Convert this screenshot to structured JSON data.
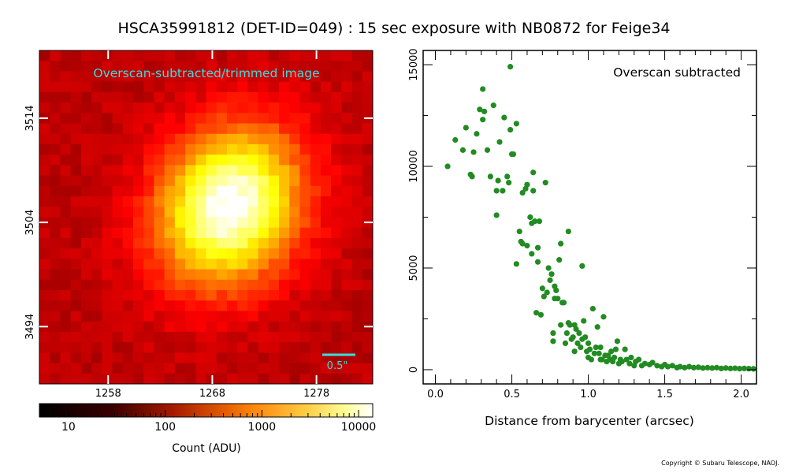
{
  "figure": {
    "title": "HSCA35991812 (DET-ID=049) :  15 sec exposure with NB0872 for Feige34",
    "copyright": "Copyright © Subaru Telescope, NAOJ."
  },
  "chart_data": [
    {
      "type": "heatmap",
      "label": "Overscan-subtracted/trimmed image",
      "x_ticks": [
        1258,
        1268,
        1278
      ],
      "y_ticks": [
        3494,
        3504,
        3514
      ],
      "xlim": [
        1251.4,
        1283.4
      ],
      "ylim": [
        3488.5,
        3520.5
      ],
      "peak_center": [
        1269.6,
        3505.5
      ],
      "scale_bar_label": "0.5\"",
      "label_color": "#33e0e0",
      "colorbar": {
        "label": "Count (ADU)",
        "scale": "log",
        "range": [
          5,
          14000
        ],
        "tick_labels": [
          "10",
          "100",
          "1000",
          "10000"
        ],
        "tick_values": [
          10,
          100,
          1000,
          10000
        ]
      }
    },
    {
      "type": "scatter",
      "label": "Overscan subtracted",
      "xlabel": "Distance from barycenter (arcsec)",
      "ylabel": "",
      "xlim": [
        -0.08,
        2.1
      ],
      "ylim": [
        -700,
        15700
      ],
      "x_ticks": [
        0.0,
        0.5,
        1.0,
        1.5,
        2.0
      ],
      "x_tick_labels": [
        "0.0",
        "0.5",
        "1.0",
        "1.5",
        "2.0"
      ],
      "y_ticks": [
        0,
        5000,
        10000,
        15000
      ],
      "y_tick_labels": [
        "0",
        "5000",
        "10000",
        "15000"
      ],
      "color": "#228b22",
      "points": [
        [
          0.08,
          10000
        ],
        [
          0.13,
          11300
        ],
        [
          0.18,
          10800
        ],
        [
          0.2,
          11900
        ],
        [
          0.23,
          9600
        ],
        [
          0.24,
          9500
        ],
        [
          0.25,
          10700
        ],
        [
          0.27,
          11600
        ],
        [
          0.29,
          12800
        ],
        [
          0.31,
          13800
        ],
        [
          0.31,
          12300
        ],
        [
          0.32,
          12700
        ],
        [
          0.34,
          10800
        ],
        [
          0.36,
          9500
        ],
        [
          0.38,
          13000
        ],
        [
          0.4,
          8800
        ],
        [
          0.4,
          7600
        ],
        [
          0.41,
          9300
        ],
        [
          0.42,
          11200
        ],
        [
          0.44,
          8800
        ],
        [
          0.45,
          12400
        ],
        [
          0.47,
          9500
        ],
        [
          0.48,
          9200
        ],
        [
          0.49,
          14900
        ],
        [
          0.49,
          11800
        ],
        [
          0.5,
          10600
        ],
        [
          0.51,
          10600
        ],
        [
          0.53,
          12100
        ],
        [
          0.53,
          5200
        ],
        [
          0.55,
          6800
        ],
        [
          0.56,
          6300
        ],
        [
          0.57,
          6200
        ],
        [
          0.57,
          8700
        ],
        [
          0.59,
          8900
        ],
        [
          0.6,
          9100
        ],
        [
          0.6,
          6100
        ],
        [
          0.62,
          7500
        ],
        [
          0.63,
          5700
        ],
        [
          0.63,
          7200
        ],
        [
          0.64,
          8800
        ],
        [
          0.64,
          9700
        ],
        [
          0.65,
          7300
        ],
        [
          0.66,
          2800
        ],
        [
          0.67,
          6000
        ],
        [
          0.67,
          5300
        ],
        [
          0.68,
          7300
        ],
        [
          0.69,
          2700
        ],
        [
          0.7,
          4000
        ],
        [
          0.71,
          3600
        ],
        [
          0.72,
          9200
        ],
        [
          0.73,
          3800
        ],
        [
          0.74,
          5000
        ],
        [
          0.75,
          4400
        ],
        [
          0.76,
          4700
        ],
        [
          0.77,
          1800
        ],
        [
          0.77,
          1400
        ],
        [
          0.78,
          4100
        ],
        [
          0.78,
          3500
        ],
        [
          0.79,
          3900
        ],
        [
          0.8,
          3500
        ],
        [
          0.81,
          5400
        ],
        [
          0.82,
          6200
        ],
        [
          0.82,
          2200
        ],
        [
          0.83,
          3300
        ],
        [
          0.84,
          3300
        ],
        [
          0.85,
          1300
        ],
        [
          0.86,
          1800
        ],
        [
          0.87,
          6800
        ],
        [
          0.87,
          2300
        ],
        [
          0.88,
          2200
        ],
        [
          0.89,
          1500
        ],
        [
          0.9,
          1600
        ],
        [
          0.91,
          900
        ],
        [
          0.91,
          2200
        ],
        [
          0.92,
          2000
        ],
        [
          0.93,
          1300
        ],
        [
          0.94,
          1800
        ],
        [
          0.95,
          1100
        ],
        [
          0.96,
          1500
        ],
        [
          0.96,
          5100
        ],
        [
          0.97,
          2400
        ],
        [
          0.98,
          1600
        ],
        [
          0.99,
          900
        ],
        [
          1.0,
          1300
        ],
        [
          1.0,
          600
        ],
        [
          1.01,
          1000
        ],
        [
          1.02,
          500
        ],
        [
          1.03,
          3000
        ],
        [
          1.04,
          800
        ],
        [
          1.05,
          1100
        ],
        [
          1.06,
          2100
        ],
        [
          1.07,
          800
        ],
        [
          1.08,
          500
        ],
        [
          1.08,
          1100
        ],
        [
          1.09,
          500
        ],
        [
          1.1,
          2600
        ],
        [
          1.11,
          700
        ],
        [
          1.12,
          400
        ],
        [
          1.13,
          700
        ],
        [
          1.14,
          500
        ],
        [
          1.15,
          900
        ],
        [
          1.16,
          400
        ],
        [
          1.17,
          600
        ],
        [
          1.18,
          1000
        ],
        [
          1.19,
          1400
        ],
        [
          1.2,
          300
        ],
        [
          1.21,
          500
        ],
        [
          1.22,
          400
        ],
        [
          1.24,
          1000
        ],
        [
          1.25,
          500
        ],
        [
          1.27,
          300
        ],
        [
          1.28,
          600
        ],
        [
          1.3,
          200
        ],
        [
          1.31,
          400
        ],
        [
          1.33,
          500
        ],
        [
          1.35,
          200
        ],
        [
          1.37,
          300
        ],
        [
          1.4,
          250
        ],
        [
          1.42,
          350
        ],
        [
          1.45,
          200
        ],
        [
          1.48,
          150
        ],
        [
          1.5,
          250
        ],
        [
          1.52,
          150
        ],
        [
          1.55,
          200
        ],
        [
          1.58,
          100
        ],
        [
          1.6,
          150
        ],
        [
          1.63,
          100
        ],
        [
          1.66,
          150
        ],
        [
          1.69,
          100
        ],
        [
          1.72,
          120
        ],
        [
          1.75,
          80
        ],
        [
          1.78,
          100
        ],
        [
          1.81,
          80
        ],
        [
          1.84,
          100
        ],
        [
          1.87,
          60
        ],
        [
          1.9,
          80
        ],
        [
          1.93,
          60
        ],
        [
          1.96,
          70
        ],
        [
          1.99,
          50
        ],
        [
          2.02,
          60
        ],
        [
          2.05,
          50
        ],
        [
          2.08,
          40
        ]
      ]
    }
  ]
}
